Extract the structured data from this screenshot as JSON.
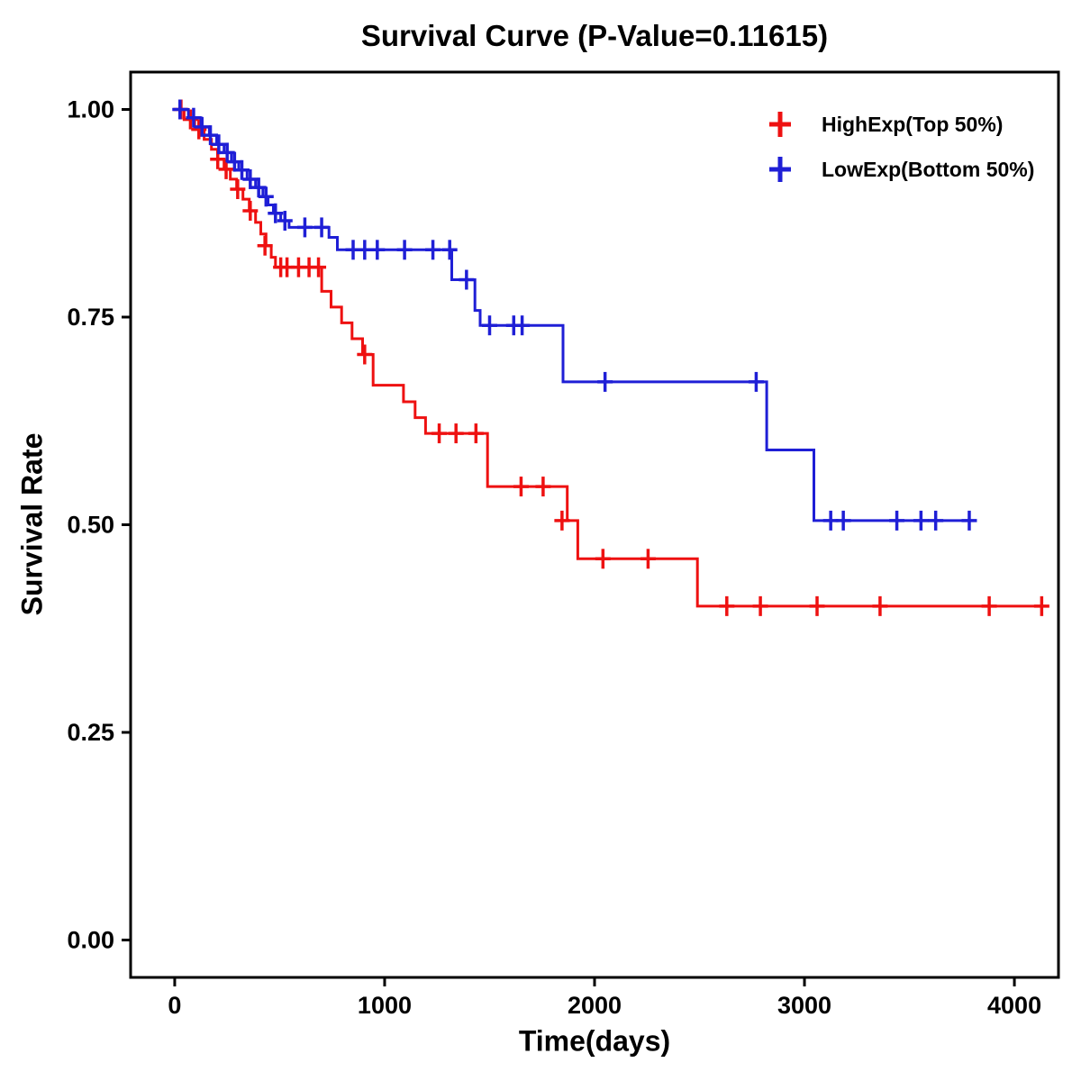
{
  "chart_data": {
    "type": "line",
    "subtype": "kaplan-meier-step-survival",
    "title": "Survival Curve (P-Value=0.11615)",
    "xlabel": "Time(days)",
    "ylabel": "Survival Rate",
    "xlim": [
      -210,
      4210
    ],
    "ylim": [
      -0.045,
      1.045
    ],
    "xticks": [
      0,
      1000,
      2000,
      3000,
      4000
    ],
    "xtick_labels": [
      "0",
      "1000",
      "2000",
      "3000",
      "4000"
    ],
    "yticks": [
      0,
      0.25,
      0.5,
      0.75,
      1
    ],
    "ytick_labels": [
      "0.00",
      "0.25",
      "0.50",
      "0.75",
      "1.00"
    ],
    "grid": false,
    "legend_position": "top-right",
    "series": [
      {
        "name": "HighExp(Top 50%)",
        "color": "#ee1111",
        "end_time": 4150,
        "steps": [
          [
            0,
            1.0
          ],
          [
            45,
            0.988
          ],
          [
            95,
            0.976
          ],
          [
            140,
            0.964
          ],
          [
            175,
            0.952
          ],
          [
            205,
            0.94
          ],
          [
            235,
            0.928
          ],
          [
            265,
            0.916
          ],
          [
            295,
            0.904
          ],
          [
            325,
            0.892
          ],
          [
            355,
            0.878
          ],
          [
            385,
            0.864
          ],
          [
            410,
            0.85
          ],
          [
            435,
            0.836
          ],
          [
            460,
            0.822
          ],
          [
            480,
            0.81
          ],
          [
            700,
            0.781
          ],
          [
            745,
            0.762
          ],
          [
            795,
            0.743
          ],
          [
            845,
            0.724
          ],
          [
            895,
            0.705
          ],
          [
            945,
            0.668
          ],
          [
            1090,
            0.648
          ],
          [
            1145,
            0.629
          ],
          [
            1195,
            0.61
          ],
          [
            1490,
            0.546
          ],
          [
            1870,
            0.505
          ],
          [
            1920,
            0.459
          ],
          [
            2490,
            0.402
          ]
        ],
        "censors": [
          [
            30,
            1.0
          ],
          [
            75,
            0.988
          ],
          [
            115,
            0.976
          ],
          [
            205,
            0.94
          ],
          [
            245,
            0.928
          ],
          [
            300,
            0.904
          ],
          [
            360,
            0.878
          ],
          [
            430,
            0.836
          ],
          [
            505,
            0.81
          ],
          [
            535,
            0.81
          ],
          [
            590,
            0.81
          ],
          [
            640,
            0.81
          ],
          [
            685,
            0.81
          ],
          [
            905,
            0.705
          ],
          [
            1260,
            0.61
          ],
          [
            1340,
            0.61
          ],
          [
            1435,
            0.61
          ],
          [
            1650,
            0.546
          ],
          [
            1755,
            0.546
          ],
          [
            1845,
            0.505
          ],
          [
            2040,
            0.459
          ],
          [
            2255,
            0.459
          ],
          [
            2630,
            0.402
          ],
          [
            2790,
            0.402
          ],
          [
            3060,
            0.402
          ],
          [
            3360,
            0.402
          ],
          [
            3880,
            0.402
          ],
          [
            4130,
            0.402
          ]
        ]
      },
      {
        "name": "LowExp(Bottom 50%)",
        "color": "#1f1fd6",
        "end_time": 3790,
        "steps": [
          [
            0,
            1.0
          ],
          [
            65,
            0.99
          ],
          [
            125,
            0.979
          ],
          [
            165,
            0.969
          ],
          [
            200,
            0.958
          ],
          [
            235,
            0.948
          ],
          [
            270,
            0.937
          ],
          [
            305,
            0.927
          ],
          [
            345,
            0.916
          ],
          [
            385,
            0.906
          ],
          [
            420,
            0.895
          ],
          [
            445,
            0.885
          ],
          [
            470,
            0.875
          ],
          [
            505,
            0.866
          ],
          [
            545,
            0.858
          ],
          [
            735,
            0.846
          ],
          [
            775,
            0.831
          ],
          [
            1320,
            0.795
          ],
          [
            1430,
            0.758
          ],
          [
            1455,
            0.74
          ],
          [
            1850,
            0.672
          ],
          [
            2820,
            0.59
          ],
          [
            3045,
            0.505
          ]
        ],
        "censors": [
          [
            25,
            1.0
          ],
          [
            90,
            0.99
          ],
          [
            130,
            0.979
          ],
          [
            170,
            0.969
          ],
          [
            210,
            0.958
          ],
          [
            250,
            0.948
          ],
          [
            285,
            0.937
          ],
          [
            320,
            0.927
          ],
          [
            360,
            0.916
          ],
          [
            400,
            0.906
          ],
          [
            435,
            0.895
          ],
          [
            480,
            0.875
          ],
          [
            525,
            0.866
          ],
          [
            620,
            0.858
          ],
          [
            700,
            0.858
          ],
          [
            850,
            0.831
          ],
          [
            905,
            0.831
          ],
          [
            965,
            0.831
          ],
          [
            1095,
            0.831
          ],
          [
            1230,
            0.831
          ],
          [
            1310,
            0.831
          ],
          [
            1390,
            0.795
          ],
          [
            1500,
            0.74
          ],
          [
            1615,
            0.74
          ],
          [
            1655,
            0.74
          ],
          [
            2050,
            0.672
          ],
          [
            2770,
            0.672
          ],
          [
            3125,
            0.505
          ],
          [
            3185,
            0.505
          ],
          [
            3440,
            0.505
          ],
          [
            3555,
            0.505
          ],
          [
            3625,
            0.505
          ],
          [
            3785,
            0.505
          ]
        ]
      }
    ]
  }
}
